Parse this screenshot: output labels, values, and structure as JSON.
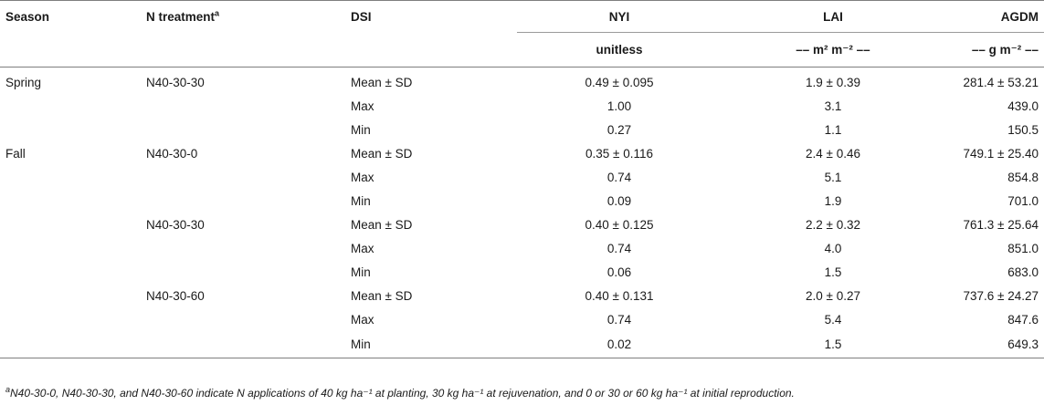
{
  "table": {
    "headers": {
      "season": "Season",
      "n_treatment": "N treatment",
      "n_treatment_sup": "a",
      "dsi": "DSI",
      "nyi": "NYI",
      "lai": "LAI",
      "agdm": "AGDM"
    },
    "units": {
      "nyi": "unitless",
      "lai": "–– m² m⁻² ––",
      "agdm": "–– g m⁻² ––"
    },
    "rows": [
      {
        "season": "Spring",
        "n": "N40-30-30",
        "dsi": "Mean ± SD",
        "nyi": "0.49 ± 0.095",
        "lai": "1.9 ± 0.39",
        "agdm": "281.4 ± 53.21"
      },
      {
        "season": "",
        "n": "",
        "dsi": "Max",
        "nyi": "1.00",
        "lai": "3.1",
        "agdm": "439.0"
      },
      {
        "season": "",
        "n": "",
        "dsi": "Min",
        "nyi": "0.27",
        "lai": "1.1",
        "agdm": "150.5"
      },
      {
        "season": "Fall",
        "n": "N40-30-0",
        "dsi": "Mean ± SD",
        "nyi": "0.35 ± 0.116",
        "lai": "2.4 ± 0.46",
        "agdm": "749.1 ± 25.40"
      },
      {
        "season": "",
        "n": "",
        "dsi": "Max",
        "nyi": "0.74",
        "lai": "5.1",
        "agdm": "854.8"
      },
      {
        "season": "",
        "n": "",
        "dsi": "Min",
        "nyi": "0.09",
        "lai": "1.9",
        "agdm": "701.0"
      },
      {
        "season": "",
        "n": "N40-30-30",
        "dsi": "Mean ± SD",
        "nyi": "0.40 ± 0.125",
        "lai": "2.2 ± 0.32",
        "agdm": "761.3 ± 25.64"
      },
      {
        "season": "",
        "n": "",
        "dsi": "Max",
        "nyi": "0.74",
        "lai": "4.0",
        "agdm": "851.0"
      },
      {
        "season": "",
        "n": "",
        "dsi": "Min",
        "nyi": "0.06",
        "lai": "1.5",
        "agdm": "683.0"
      },
      {
        "season": "",
        "n": "N40-30-60",
        "dsi": "Mean ± SD",
        "nyi": "0.40 ± 0.131",
        "lai": "2.0 ± 0.27",
        "agdm": "737.6 ± 24.27"
      },
      {
        "season": "",
        "n": "",
        "dsi": "Max",
        "nyi": "0.74",
        "lai": "5.4",
        "agdm": "847.6"
      },
      {
        "season": "",
        "n": "",
        "dsi": "Min",
        "nyi": "0.02",
        "lai": "1.5",
        "agdm": "649.3"
      }
    ]
  },
  "footnote": {
    "marker": "a",
    "text": "N40-30-0, N40-30-30, and N40-30-60 indicate N applications of 40 kg ha⁻¹ at planting, 30 kg ha⁻¹ at rejuvenation, and 0 or 30 or 60 kg ha⁻¹ at initial reproduction."
  }
}
